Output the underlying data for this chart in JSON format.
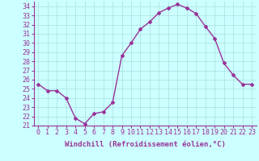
{
  "x": [
    0,
    1,
    2,
    3,
    4,
    5,
    6,
    7,
    8,
    9,
    10,
    11,
    12,
    13,
    14,
    15,
    16,
    17,
    18,
    19,
    20,
    21,
    22,
    23
  ],
  "y": [
    25.5,
    24.8,
    24.8,
    24.0,
    21.8,
    21.2,
    22.3,
    22.5,
    23.5,
    28.6,
    30.0,
    31.5,
    32.3,
    33.3,
    33.8,
    34.2,
    33.8,
    33.2,
    31.8,
    30.5,
    27.8,
    26.5,
    25.5,
    25.5
  ],
  "color": "#993399",
  "bg_color": "#ccffff",
  "grid_color": "#aadddd",
  "xlabel": "Windchill (Refroidissement éolien,°C)",
  "ylim": [
    21,
    34.5
  ],
  "xlim": [
    -0.5,
    23.5
  ],
  "yticks": [
    21,
    22,
    23,
    24,
    25,
    26,
    27,
    28,
    29,
    30,
    31,
    32,
    33,
    34
  ],
  "xticks": [
    0,
    1,
    2,
    3,
    4,
    5,
    6,
    7,
    8,
    9,
    10,
    11,
    12,
    13,
    14,
    15,
    16,
    17,
    18,
    19,
    20,
    21,
    22,
    23
  ],
  "xlabel_fontsize": 6.5,
  "tick_fontsize": 6.0,
  "line_width": 1.0,
  "marker": "D",
  "marker_size": 2.0
}
